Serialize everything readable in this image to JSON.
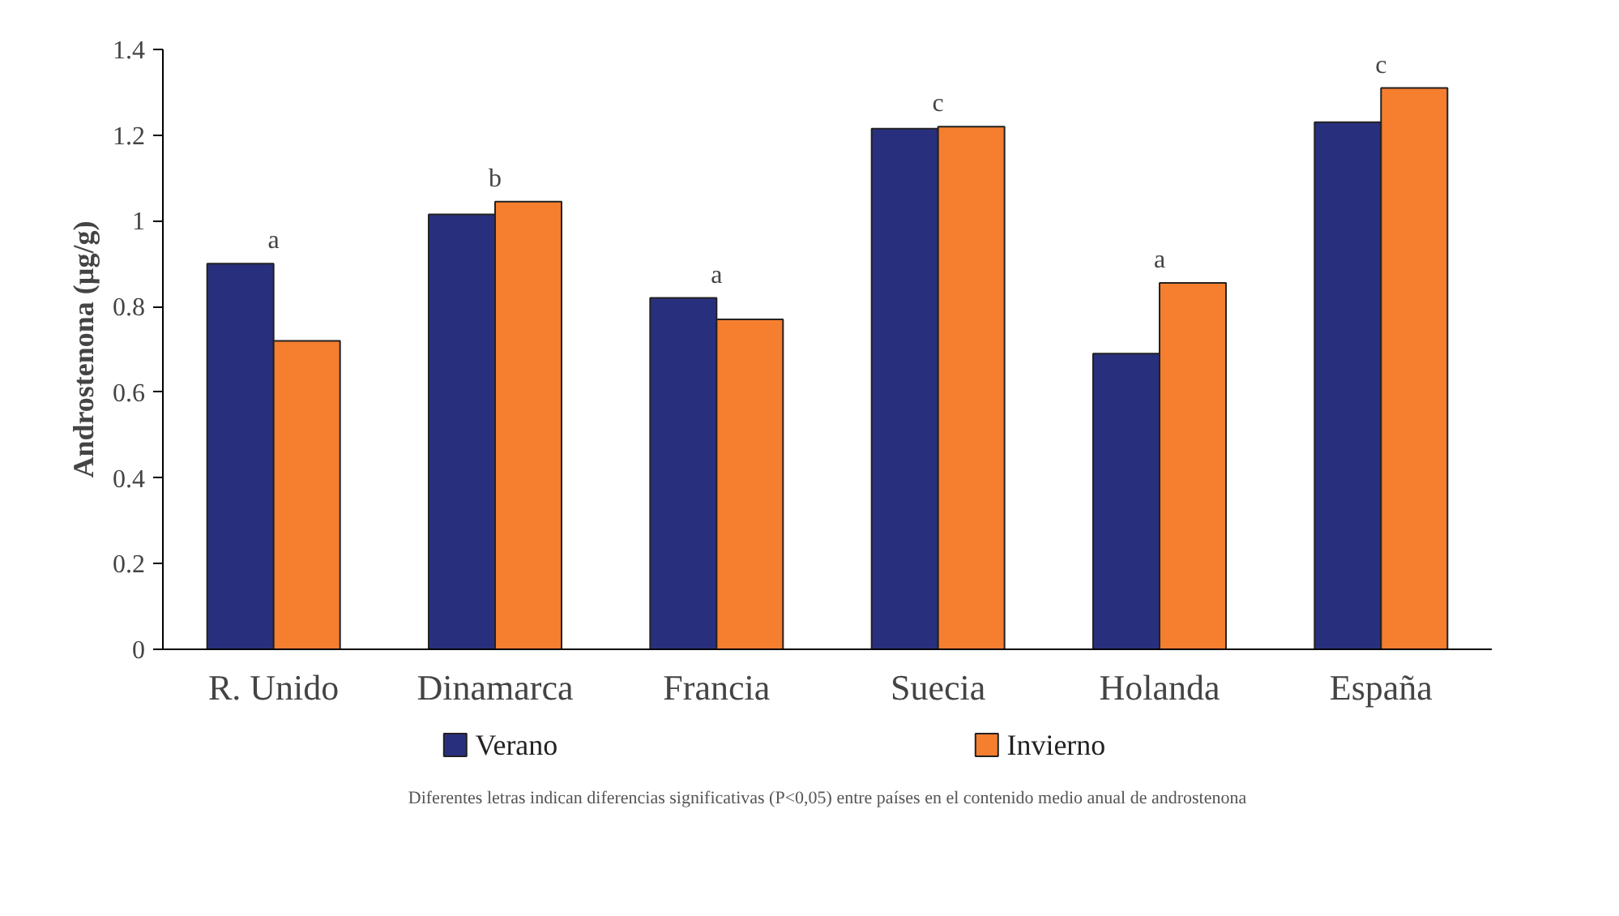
{
  "chart_data": {
    "type": "bar",
    "ylabel": "Androstenona (µg/g)",
    "categories": [
      "R. Unido",
      "Dinamarca",
      "Francia",
      "Suecia",
      "Holanda",
      "España"
    ],
    "series": [
      {
        "name": "Verano",
        "color": "#28307e",
        "values": [
          0.9,
          1.015,
          0.82,
          1.215,
          0.69,
          1.23
        ]
      },
      {
        "name": "Invierno",
        "color": "#f57e2f",
        "values": [
          0.72,
          1.045,
          0.77,
          1.22,
          0.855,
          1.31
        ]
      }
    ],
    "ylim": [
      0,
      1.4
    ],
    "yticks": [
      0,
      {
        "value": 0.2,
        "label": "0.2"
      },
      {
        "value": 0.4,
        "label": "0.4"
      },
      {
        "value": 0.6,
        "label": "0.6"
      },
      {
        "value": 0.8,
        "label": "0.8"
      },
      1,
      {
        "value": 1.2,
        "label": "1.2"
      },
      {
        "value": 1.4,
        "label": "1.4"
      }
    ],
    "grid": false,
    "legend": "bottom",
    "annotations": [
      "a",
      "b",
      "a",
      "c",
      "a",
      "c",
      "Diferentes letras indican diferencias significativas (P<0,05) entre países en el contenido medio anual de androstenona"
    ]
  }
}
